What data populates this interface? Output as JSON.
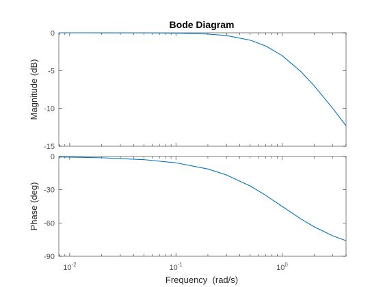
{
  "chart_data": [
    {
      "type": "line",
      "panel": "magnitude",
      "title": "Bode Diagram",
      "xlabel": "Frequency  (rad/s)",
      "ylabel": "Magnitude (dB)",
      "xscale": "log",
      "xlim": [
        0.0079,
        4.0
      ],
      "ylim": [
        -15,
        0
      ],
      "yticks": [
        0,
        -5,
        -10,
        -15
      ],
      "ytick_labels": [
        "0",
        "-5",
        "-10",
        "-15"
      ],
      "grid": false,
      "series": [
        {
          "color": "#0072bd",
          "x": [
            0.0079,
            0.01,
            0.02,
            0.05,
            0.1,
            0.2,
            0.3,
            0.5,
            0.7,
            1.0,
            1.5,
            2.0,
            3.0,
            4.0
          ],
          "y": [
            0,
            0,
            -0.002,
            -0.011,
            -0.043,
            -0.17,
            -0.37,
            -0.97,
            -1.74,
            -3.01,
            -5.12,
            -6.99,
            -10.0,
            -12.3
          ]
        }
      ]
    },
    {
      "type": "line",
      "panel": "phase",
      "xlabel": "Frequency  (rad/s)",
      "ylabel": "Phase (deg)",
      "xscale": "log",
      "xlim": [
        0.0079,
        4.0
      ],
      "ylim": [
        -90,
        0
      ],
      "yticks": [
        0,
        -30,
        -60,
        -90
      ],
      "ytick_labels": [
        "0",
        "-30",
        "-60",
        "-90"
      ],
      "xticks": [
        0.01,
        0.1,
        1.0
      ],
      "xtick_labels": [
        {
          "base": "10",
          "exp": "-2"
        },
        {
          "base": "10",
          "exp": "-1"
        },
        {
          "base": "10",
          "exp": "0"
        }
      ],
      "grid": false,
      "series": [
        {
          "color": "#0072bd",
          "x": [
            0.0079,
            0.01,
            0.02,
            0.05,
            0.1,
            0.2,
            0.3,
            0.5,
            0.7,
            1.0,
            1.5,
            2.0,
            3.0,
            4.0
          ],
          "y": [
            -0.45,
            -0.57,
            -1.15,
            -2.86,
            -5.71,
            -11.3,
            -16.7,
            -26.6,
            -35.0,
            -45.0,
            -56.3,
            -63.4,
            -71.6,
            -76.0
          ]
        }
      ]
    }
  ]
}
